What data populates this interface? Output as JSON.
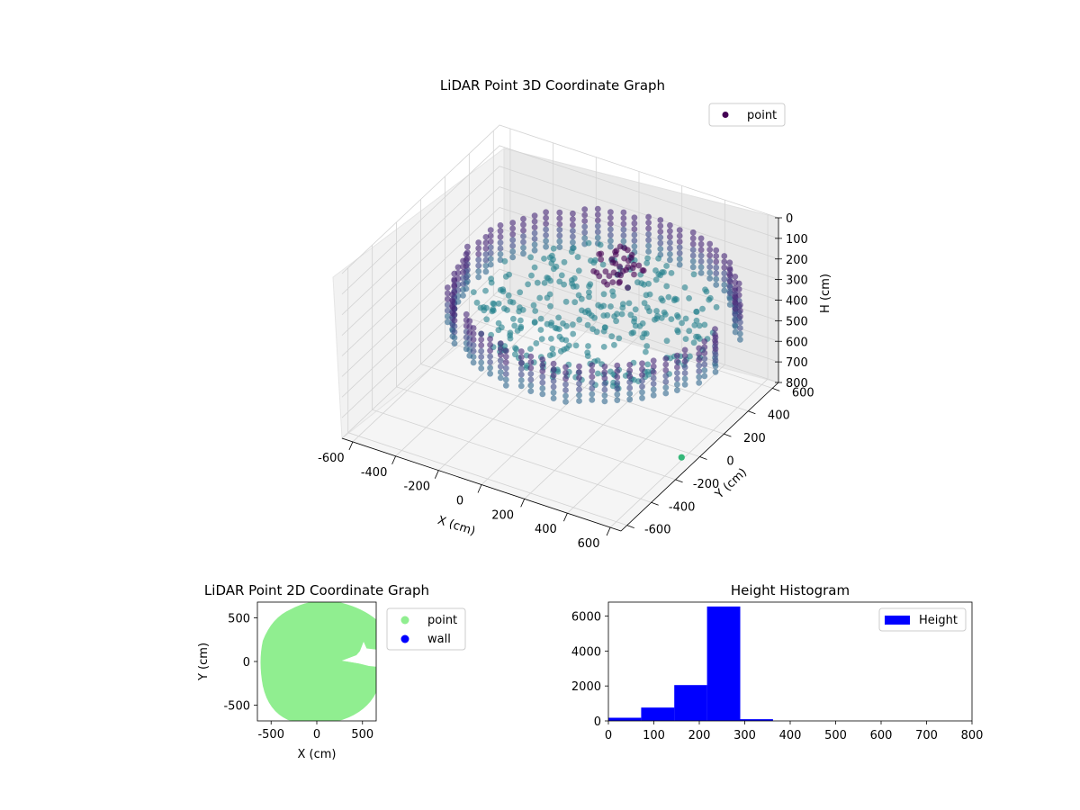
{
  "chart_data": [
    {
      "type": "scatter",
      "title": "LiDAR Point 3D Coordinate Graph",
      "xlabel": "X (cm)",
      "ylabel": "Y (cm)",
      "zlabel": "H (cm)",
      "xlim": [
        -650,
        650
      ],
      "ylim": [
        -650,
        650
      ],
      "zlim": [
        800,
        0
      ],
      "xticks": [
        "-600",
        "-400",
        "-200",
        "0",
        "200",
        "400",
        "600"
      ],
      "yticks": [
        "-600",
        "-400",
        "-200",
        "0",
        "200",
        "400",
        "600"
      ],
      "zticks": [
        "0",
        "100",
        "200",
        "300",
        "400",
        "500",
        "600",
        "700",
        "800"
      ],
      "series": [
        {
          "name": "point",
          "color": "#440154",
          "colormap": "viridis"
        }
      ],
      "legend": "top-right",
      "grid": true
    },
    {
      "type": "scatter",
      "title": "LiDAR Point 2D Coordinate Graph",
      "xlabel": "X (cm)",
      "ylabel": "Y (cm)",
      "xlim": [
        -650,
        650
      ],
      "ylim": [
        -680,
        680
      ],
      "xticks": [
        "-500",
        "0",
        "500"
      ],
      "yticks": [
        "-500",
        "0",
        "500"
      ],
      "series": [
        {
          "name": "point",
          "color": "#90ee90"
        },
        {
          "name": "wall",
          "color": "#0000ff"
        }
      ],
      "legend": "outside-right"
    },
    {
      "type": "bar",
      "title": "Height Histogram",
      "xlim": [
        0,
        800
      ],
      "ylim": [
        0,
        6800
      ],
      "xticks": [
        "0",
        "100",
        "200",
        "300",
        "400",
        "500",
        "600",
        "700",
        "800"
      ],
      "yticks": [
        "0",
        "2000",
        "4000",
        "6000"
      ],
      "bins": [
        {
          "x0": 0,
          "x1": 72,
          "value": 180
        },
        {
          "x0": 72,
          "x1": 145,
          "value": 760
        },
        {
          "x0": 145,
          "x1": 217,
          "value": 2050
        },
        {
          "x0": 217,
          "x1": 290,
          "value": 6550
        },
        {
          "x0": 290,
          "x1": 362,
          "value": 100
        }
      ],
      "series": [
        {
          "name": "Height",
          "color": "#0000ff"
        }
      ],
      "legend": "top-right"
    }
  ]
}
